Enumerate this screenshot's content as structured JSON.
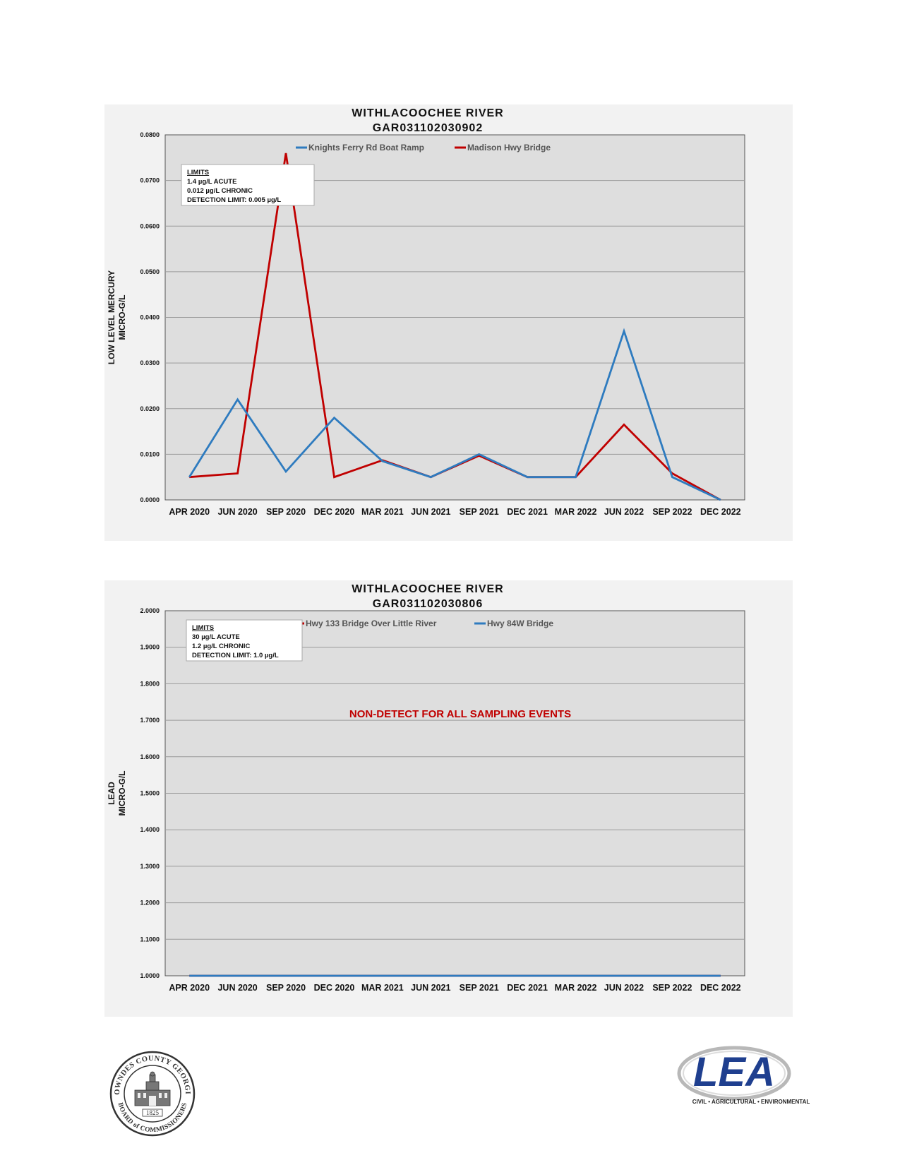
{
  "chart_data": [
    {
      "type": "line",
      "title": "WITHLACOOCHEE RIVER",
      "subtitle": "GAR031102030902",
      "ylabel": [
        "LOW LEVEL MERCURY",
        "MICRO-G/L"
      ],
      "xlabel": "",
      "categories": [
        "APR 2020",
        "JUN 2020",
        "SEP 2020",
        "DEC 2020",
        "MAR 2021",
        "JUN 2021",
        "SEP 2021",
        "DEC 2021",
        "MAR 2022",
        "JUN 2022",
        "SEP 2022",
        "DEC 2022"
      ],
      "y_ticks": [
        "0.0000",
        "0.0100",
        "0.0200",
        "0.0300",
        "0.0400",
        "0.0500",
        "0.0600",
        "0.0700",
        "0.0800"
      ],
      "ylim": [
        0,
        0.08
      ],
      "grid": true,
      "legend_position": "top",
      "series": [
        {
          "name": "Knights Ferry Rd Boat Ramp",
          "color": "#2e7bbf",
          "values": [
            0.005,
            0.022,
            0.0062,
            0.018,
            0.0085,
            0.005,
            0.01,
            0.005,
            0.005,
            0.037,
            0.005,
            0
          ]
        },
        {
          "name": "Madison Hwy Bridge",
          "color": "#c00000",
          "values": [
            0.005,
            0.0058,
            0.076,
            0.005,
            0.0087,
            0.005,
            0.0097,
            0.005,
            0.005,
            0.0165,
            0.0058,
            0
          ]
        }
      ],
      "limits_box": {
        "heading": "LIMITS",
        "lines": [
          "1.4 µg/L ACUTE",
          "0.012 µg/L CHRONIC",
          "DETECTION LIMIT: 0.005 µg/L"
        ]
      }
    },
    {
      "type": "line",
      "title": "WITHLACOOCHEE RIVER",
      "subtitle": "GAR031102030806",
      "ylabel": [
        "LEAD",
        "MICRO-G/L"
      ],
      "xlabel": "",
      "categories": [
        "APR 2020",
        "JUN 2020",
        "SEP 2020",
        "DEC 2020",
        "MAR 2021",
        "JUN 2021",
        "SEP 2021",
        "DEC 2021",
        "MAR 2022",
        "JUN 2022",
        "SEP 2022",
        "DEC 2022"
      ],
      "y_ticks": [
        "1.0000",
        "1.1000",
        "1.2000",
        "1.3000",
        "1.4000",
        "1.5000",
        "1.6000",
        "1.7000",
        "1.8000",
        "1.9000",
        "2.0000"
      ],
      "ylim": [
        1,
        2
      ],
      "grid": true,
      "legend_position": "top",
      "series": [
        {
          "name": "Hwy 133 Bridge Over Little River",
          "color": "#c00000",
          "values": [
            1,
            1,
            1,
            1,
            1,
            1,
            1,
            1,
            1,
            1,
            1,
            1
          ]
        },
        {
          "name": "Hwy 84W Bridge",
          "color": "#2e7bbf",
          "values": [
            1,
            1,
            1,
            1,
            1,
            1,
            1,
            1,
            1,
            1,
            1,
            1
          ]
        }
      ],
      "limits_box": {
        "heading": "LIMITS",
        "lines": [
          "30 µg/L ACUTE",
          "1.2 µg/L CHRONIC",
          "DETECTION LIMIT: 1.0 µg/L"
        ]
      },
      "annotation": "NON-DETECT FOR ALL SAMPLING EVENTS"
    }
  ],
  "footer": {
    "seal": {
      "icon": "lowndes-county-seal",
      "text_top": "LOWNDES COUNTY GEORGIA",
      "text_bottom": "BOARD of COMMISSIONERS",
      "year": "1825"
    },
    "logo": {
      "icon": "lea-logo",
      "letters": "LEA",
      "tagline": "CIVIL • AGRICULTURAL • ENVIRONMENTAL"
    }
  }
}
